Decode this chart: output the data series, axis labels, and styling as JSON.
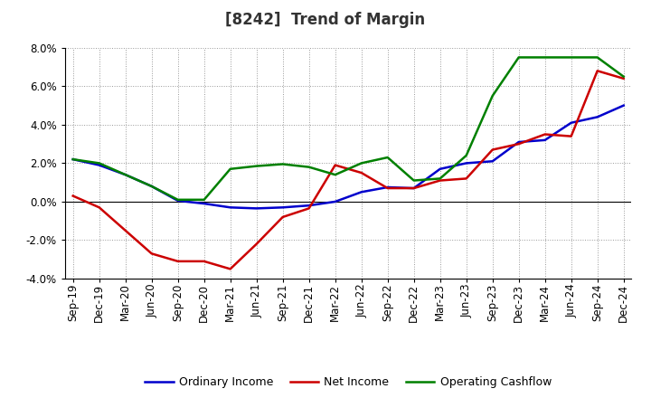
{
  "title": "[8242]  Trend of Margin",
  "x_labels": [
    "Sep-19",
    "Dec-19",
    "Mar-20",
    "Jun-20",
    "Sep-20",
    "Dec-20",
    "Mar-21",
    "Jun-21",
    "Sep-21",
    "Dec-21",
    "Mar-22",
    "Jun-22",
    "Sep-22",
    "Dec-22",
    "Mar-23",
    "Jun-23",
    "Sep-23",
    "Dec-23",
    "Mar-24",
    "Jun-24",
    "Sep-24",
    "Dec-24"
  ],
  "ordinary_income": [
    2.2,
    1.9,
    1.4,
    0.8,
    0.05,
    -0.1,
    -0.3,
    -0.35,
    -0.3,
    -0.2,
    0.0,
    0.5,
    0.75,
    0.7,
    1.7,
    2.0,
    2.1,
    3.1,
    3.2,
    4.1,
    4.4,
    5.0
  ],
  "net_income": [
    0.3,
    -0.3,
    -1.5,
    -2.7,
    -3.1,
    -3.1,
    -3.5,
    -2.2,
    -0.8,
    -0.35,
    1.9,
    1.5,
    0.7,
    0.7,
    1.1,
    1.2,
    2.7,
    3.0,
    3.5,
    3.4,
    6.8,
    6.4
  ],
  "operating_cashflow": [
    2.2,
    2.0,
    1.4,
    0.8,
    0.1,
    0.1,
    1.7,
    1.85,
    1.95,
    1.8,
    1.4,
    2.0,
    2.3,
    1.1,
    1.2,
    2.4,
    5.5,
    7.5,
    7.5,
    7.5,
    7.5,
    6.5
  ],
  "ylim": [
    -4.0,
    8.0
  ],
  "yticks": [
    -4.0,
    -2.0,
    0.0,
    2.0,
    4.0,
    6.0,
    8.0
  ],
  "color_ordinary": "#0000cc",
  "color_net": "#cc0000",
  "color_cashflow": "#008000",
  "background_color": "#ffffff",
  "grid_color": "#999999",
  "line_width": 1.8,
  "title_fontsize": 12,
  "tick_fontsize": 8.5,
  "legend_fontsize": 9
}
